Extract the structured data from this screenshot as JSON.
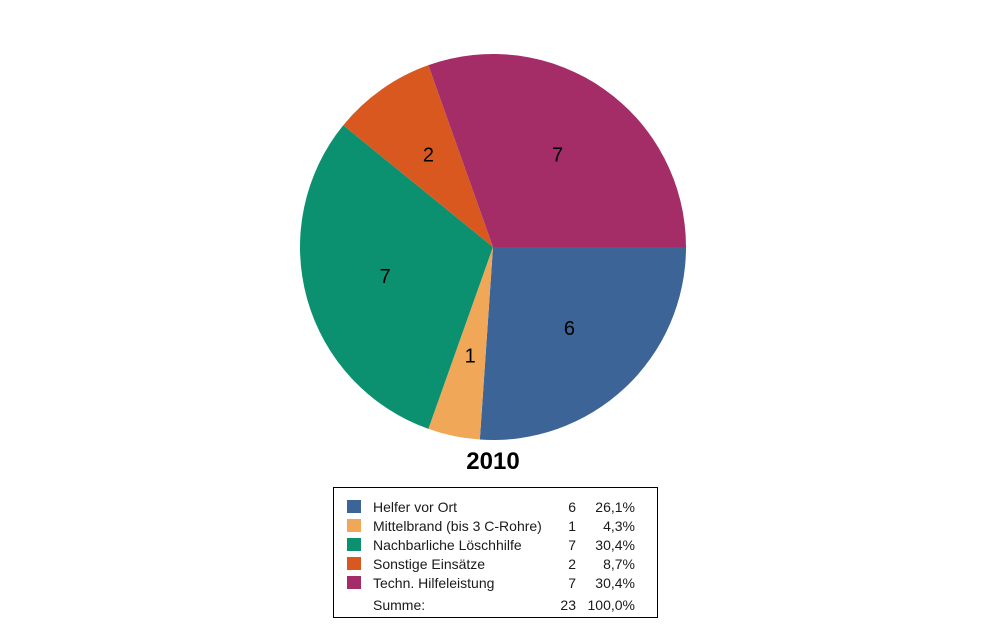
{
  "chart_data": {
    "type": "pie",
    "title": "2010",
    "start_angle_deg": 0,
    "direction": "clockwise",
    "total": 23,
    "legend_position": "bottom",
    "slices": [
      {
        "label": "Helfer vor Ort",
        "value": 6,
        "percent": "26,1%",
        "color": "#3C6497"
      },
      {
        "label": "Mittelbrand (bis 3 C-Rohre)",
        "value": 1,
        "percent": "4,3%",
        "color": "#F0A858"
      },
      {
        "label": "Nachbarliche Löschhilfe",
        "value": 7,
        "percent": "30,4%",
        "color": "#0C9170"
      },
      {
        "label": "Sonstige Einsätze",
        "value": 2,
        "percent": "8,7%",
        "color": "#D8581F"
      },
      {
        "label": "Techn. Hilfeleistung",
        "value": 7,
        "percent": "30,4%",
        "color": "#A42D68"
      }
    ],
    "summary": {
      "label": "Summe:",
      "value": "23",
      "percent": "100,0%"
    }
  }
}
